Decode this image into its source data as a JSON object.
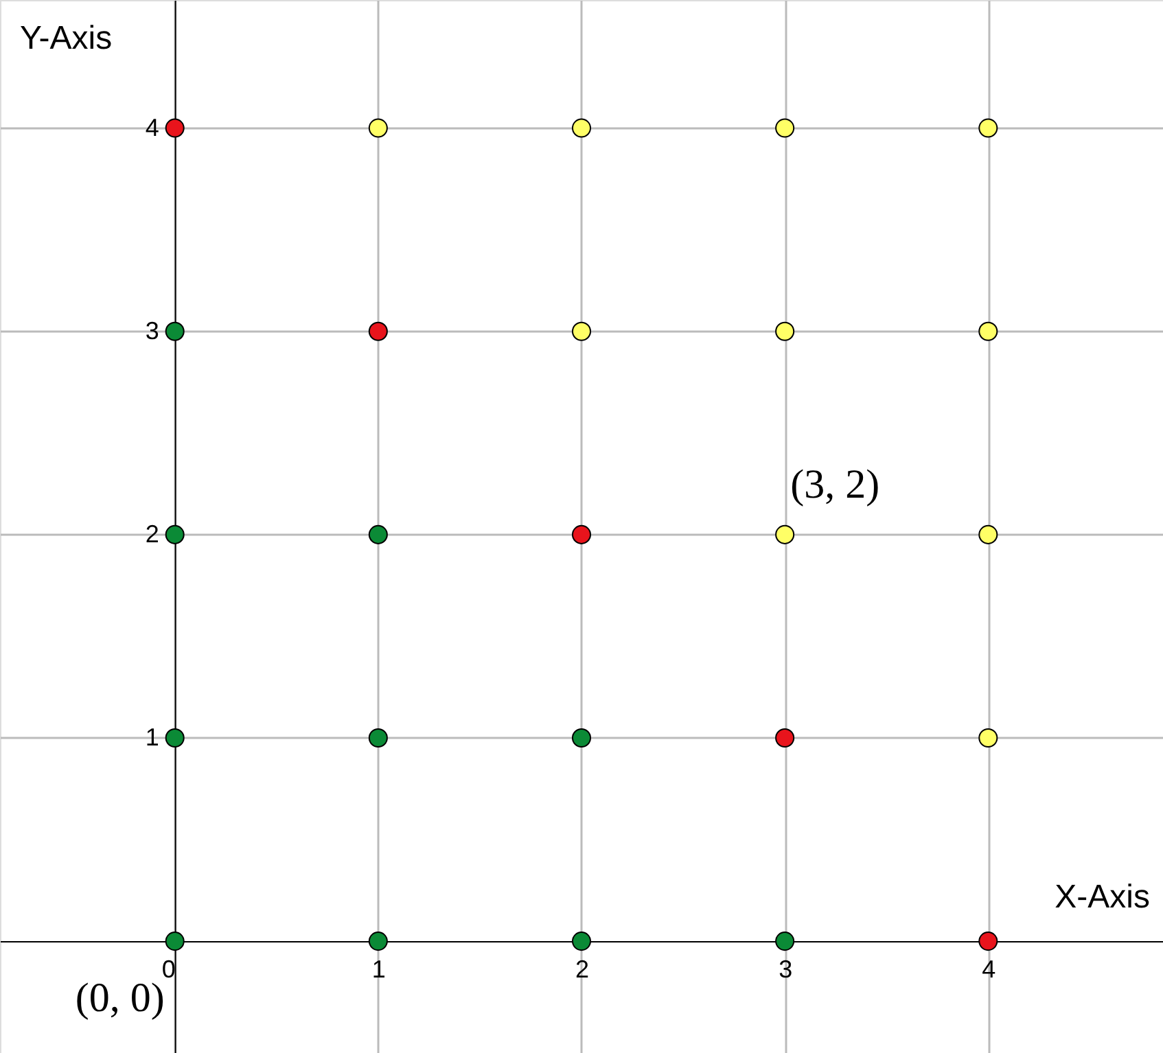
{
  "chart_data": {
    "type": "scatter",
    "xlabel": "X-Axis",
    "ylabel": "Y-Axis",
    "xlim": [
      -0.86,
      4.86
    ],
    "ylim": [
      -0.55,
      4.63
    ],
    "xticks": [
      0,
      1,
      2,
      3,
      4
    ],
    "yticks": [
      1,
      2,
      3,
      4
    ],
    "grid": true,
    "legend": false,
    "marker": "circle",
    "series": [
      {
        "color": "#0b8a36",
        "x": [
          0,
          1,
          2,
          3,
          0,
          1,
          2,
          0,
          1,
          0
        ],
        "values": [
          0,
          0,
          0,
          0,
          1,
          1,
          1,
          2,
          2,
          3
        ]
      },
      {
        "color": "#e8141c",
        "x": [
          0,
          1,
          2,
          3,
          4
        ],
        "values": [
          4,
          3,
          2,
          1,
          0
        ]
      },
      {
        "color": "#ffff66",
        "x": [
          1,
          2,
          3,
          4,
          2,
          3,
          4,
          3,
          4,
          4
        ],
        "values": [
          4,
          4,
          4,
          4,
          3,
          3,
          3,
          2,
          2,
          1
        ]
      }
    ],
    "annotations": [
      {
        "text": "(0, 0)",
        "x": 0,
        "y": 0
      },
      {
        "text": "(3, 2)",
        "x": 3,
        "y": 2
      }
    ]
  }
}
